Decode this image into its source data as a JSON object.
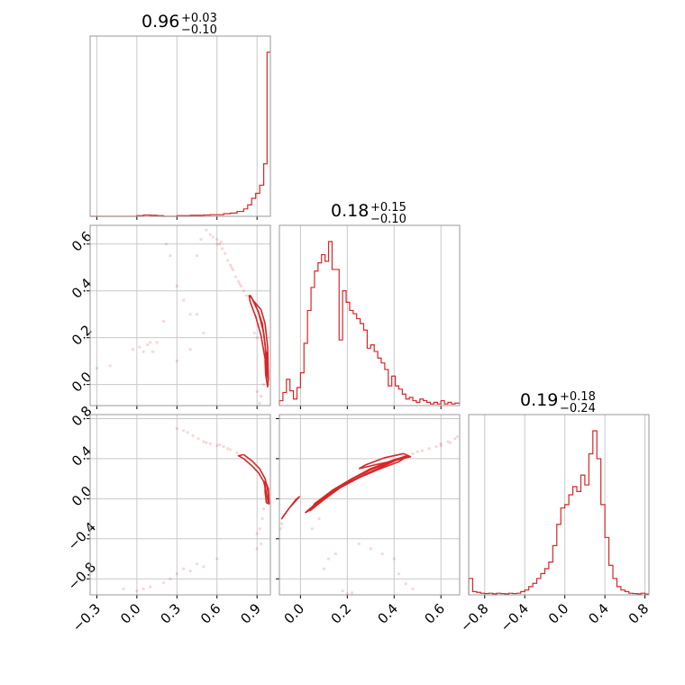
{
  "chart_data": [
    {
      "type": "histogram",
      "title_value": "0.96",
      "title_upper": "+0.03",
      "title_lower": "−0.10",
      "xlim": [
        -0.35,
        1.0
      ],
      "xticks": [
        -0.3,
        0.0,
        0.3,
        0.6,
        0.9
      ],
      "grid": true,
      "color": "#d62728",
      "bins": [
        [
          -0.35,
          0
        ],
        [
          -0.3,
          0
        ],
        [
          -0.25,
          0
        ],
        [
          -0.2,
          0
        ],
        [
          -0.15,
          0
        ],
        [
          -0.1,
          0
        ],
        [
          -0.05,
          0
        ],
        [
          0.0,
          0.004
        ],
        [
          0.05,
          0.008
        ],
        [
          0.1,
          0.006
        ],
        [
          0.15,
          0.004
        ],
        [
          0.2,
          0
        ],
        [
          0.25,
          0
        ],
        [
          0.3,
          0.004
        ],
        [
          0.35,
          0.004
        ],
        [
          0.4,
          0.006
        ],
        [
          0.45,
          0.006
        ],
        [
          0.5,
          0.008
        ],
        [
          0.55,
          0.01
        ],
        [
          0.6,
          0.01
        ],
        [
          0.65,
          0.016
        ],
        [
          0.7,
          0.02
        ],
        [
          0.75,
          0.03
        ],
        [
          0.8,
          0.045
        ],
        [
          0.83,
          0.07
        ],
        [
          0.86,
          0.11
        ],
        [
          0.89,
          0.14
        ],
        [
          0.92,
          0.19
        ],
        [
          0.95,
          0.32
        ],
        [
          0.975,
          1.0
        ]
      ]
    },
    {
      "type": "histogram",
      "title_value": "0.18",
      "title_upper": "+0.15",
      "title_lower": "−0.10",
      "xlim": [
        -0.09,
        0.68
      ],
      "xticks": [
        0.0,
        0.2,
        0.4,
        0.6
      ],
      "grid": true,
      "color": "#d62728",
      "bins": [
        [
          -0.09,
          0.03
        ],
        [
          -0.075,
          0.08
        ],
        [
          -0.06,
          0.16
        ],
        [
          -0.045,
          0.09
        ],
        [
          -0.03,
          0.04
        ],
        [
          -0.015,
          0.11
        ],
        [
          0.0,
          0.2
        ],
        [
          0.015,
          0.38
        ],
        [
          0.03,
          0.58
        ],
        [
          0.045,
          0.72
        ],
        [
          0.06,
          0.82
        ],
        [
          0.075,
          0.87
        ],
        [
          0.09,
          0.92
        ],
        [
          0.105,
          0.88
        ],
        [
          0.12,
          1.0
        ],
        [
          0.135,
          0.83
        ],
        [
          0.15,
          0.83
        ],
        [
          0.165,
          0.4
        ],
        [
          0.18,
          0.7
        ],
        [
          0.195,
          0.63
        ],
        [
          0.21,
          0.58
        ],
        [
          0.225,
          0.56
        ],
        [
          0.24,
          0.53
        ],
        [
          0.255,
          0.5
        ],
        [
          0.27,
          0.46
        ],
        [
          0.285,
          0.35
        ],
        [
          0.3,
          0.37
        ],
        [
          0.315,
          0.33
        ],
        [
          0.33,
          0.29
        ],
        [
          0.345,
          0.26
        ],
        [
          0.36,
          0.22
        ],
        [
          0.375,
          0.12
        ],
        [
          0.39,
          0.18
        ],
        [
          0.405,
          0.12
        ],
        [
          0.42,
          0.1
        ],
        [
          0.435,
          0.07
        ],
        [
          0.45,
          0.04
        ],
        [
          0.465,
          0.05
        ],
        [
          0.48,
          0.03
        ],
        [
          0.495,
          0.02
        ],
        [
          0.51,
          0.04
        ],
        [
          0.525,
          0.03
        ],
        [
          0.54,
          0.02
        ],
        [
          0.555,
          0.01
        ],
        [
          0.57,
          0.02
        ],
        [
          0.585,
          0.01
        ],
        [
          0.6,
          0.03
        ],
        [
          0.615,
          0.01
        ],
        [
          0.63,
          0.02
        ],
        [
          0.645,
          0.01
        ],
        [
          0.66,
          0.015
        ]
      ]
    },
    {
      "type": "histogram",
      "title_value": "0.19",
      "title_upper": "+0.18",
      "title_lower": "−0.24",
      "xlim": [
        -0.96,
        0.84
      ],
      "xticks": [
        -0.8,
        -0.4,
        0.0,
        0.4,
        0.8
      ],
      "grid": true,
      "color": "#d62728",
      "bins": [
        [
          -0.96,
          0.1
        ],
        [
          -0.92,
          0.02
        ],
        [
          -0.88,
          0.015
        ],
        [
          -0.84,
          0.01
        ],
        [
          -0.8,
          0.008
        ],
        [
          -0.76,
          0.01
        ],
        [
          -0.72,
          0.006
        ],
        [
          -0.68,
          0.01
        ],
        [
          -0.64,
          0.008
        ],
        [
          -0.6,
          0.006
        ],
        [
          -0.56,
          0.01
        ],
        [
          -0.52,
          0.008
        ],
        [
          -0.48,
          0.01
        ],
        [
          -0.44,
          0.02
        ],
        [
          -0.4,
          0.03
        ],
        [
          -0.36,
          0.05
        ],
        [
          -0.32,
          0.07
        ],
        [
          -0.28,
          0.1
        ],
        [
          -0.24,
          0.13
        ],
        [
          -0.2,
          0.16
        ],
        [
          -0.16,
          0.2
        ],
        [
          -0.12,
          0.3
        ],
        [
          -0.08,
          0.43
        ],
        [
          -0.04,
          0.53
        ],
        [
          0.0,
          0.55
        ],
        [
          0.04,
          0.61
        ],
        [
          0.08,
          0.66
        ],
        [
          0.12,
          0.63
        ],
        [
          0.16,
          0.73
        ],
        [
          0.2,
          0.67
        ],
        [
          0.24,
          0.86
        ],
        [
          0.28,
          1.0
        ],
        [
          0.32,
          0.83
        ],
        [
          0.36,
          0.55
        ],
        [
          0.4,
          0.35
        ],
        [
          0.44,
          0.18
        ],
        [
          0.48,
          0.1
        ],
        [
          0.52,
          0.05
        ],
        [
          0.56,
          0.03
        ],
        [
          0.6,
          0.02
        ],
        [
          0.64,
          0.01
        ],
        [
          0.68,
          0.008
        ],
        [
          0.72,
          0.006
        ],
        [
          0.76,
          0.01
        ],
        [
          0.8,
          0.005
        ]
      ]
    },
    {
      "type": "scatter",
      "xlim": [
        -0.35,
        1.0
      ],
      "ylim": [
        -0.09,
        0.68
      ],
      "yticks": [
        0.0,
        0.2,
        0.4,
        0.6
      ],
      "grid": true,
      "color": "#d62728",
      "contours": [
        [
          [
            0.93,
            0.32
          ],
          [
            0.96,
            0.26
          ],
          [
            0.98,
            0.16
          ],
          [
            0.985,
            0.02
          ],
          [
            0.975,
            0.04
          ],
          [
            0.96,
            0.17
          ],
          [
            0.94,
            0.26
          ],
          [
            0.91,
            0.31
          ],
          [
            0.88,
            0.35
          ],
          [
            0.85,
            0.38
          ],
          [
            0.87,
            0.36
          ],
          [
            0.93,
            0.32
          ]
        ],
        [
          [
            0.86,
            0.37
          ],
          [
            0.91,
            0.31
          ],
          [
            0.95,
            0.22
          ],
          [
            0.97,
            0.12
          ],
          [
            0.975,
            0.04
          ],
          [
            0.96,
            0.11
          ],
          [
            0.93,
            0.21
          ],
          [
            0.89,
            0.29
          ],
          [
            0.85,
            0.35
          ],
          [
            0.84,
            0.38
          ],
          [
            0.86,
            0.37
          ]
        ],
        [
          [
            0.97,
            0.14
          ],
          [
            0.98,
            0.08
          ],
          [
            0.985,
            0.03
          ],
          [
            0.98,
            -0.01
          ],
          [
            0.965,
            0.04
          ],
          [
            0.96,
            0.1
          ],
          [
            0.97,
            0.14
          ]
        ]
      ],
      "points": [
        [
          0.55,
          0.64
        ],
        [
          0.57,
          0.63
        ],
        [
          0.6,
          0.62
        ],
        [
          0.62,
          0.6
        ],
        [
          0.64,
          0.58
        ],
        [
          0.66,
          0.56
        ],
        [
          0.68,
          0.53
        ],
        [
          0.7,
          0.51
        ],
        [
          0.72,
          0.49
        ],
        [
          0.74,
          0.46
        ],
        [
          0.76,
          0.44
        ],
        [
          0.78,
          0.42
        ],
        [
          0.8,
          0.4
        ],
        [
          0.82,
          0.38
        ],
        [
          0.6,
          0.6
        ],
        [
          0.52,
          0.66
        ],
        [
          0.48,
          0.62
        ],
        [
          0.63,
          0.61
        ],
        [
          0.71,
          0.5
        ],
        [
          0.77,
          0.43
        ],
        [
          0.02,
          0.16
        ],
        [
          0.05,
          0.14
        ],
        [
          0.08,
          0.17
        ],
        [
          0.1,
          0.18
        ],
        [
          -0.03,
          0.15
        ],
        [
          0.12,
          0.14
        ],
        [
          0.15,
          0.18
        ],
        [
          -0.2,
          0.08
        ],
        [
          -0.3,
          0.07
        ],
        [
          0.3,
          0.42
        ],
        [
          0.35,
          0.36
        ],
        [
          0.4,
          0.3
        ],
        [
          0.2,
          0.27
        ],
        [
          0.22,
          0.6
        ],
        [
          0.25,
          0.55
        ],
        [
          0.45,
          0.55
        ],
        [
          0.9,
          -0.03
        ],
        [
          0.93,
          -0.05
        ],
        [
          0.95,
          0.0
        ],
        [
          0.92,
          -0.08
        ],
        [
          0.88,
          0.22
        ],
        [
          0.9,
          0.2
        ],
        [
          0.45,
          0.3
        ],
        [
          0.5,
          0.22
        ],
        [
          0.4,
          0.15
        ],
        [
          0.3,
          0.1
        ]
      ]
    },
    {
      "type": "scatter",
      "xlim": [
        -0.35,
        1.0
      ],
      "ylim": [
        -0.96,
        0.84
      ],
      "yticks": [
        -0.8,
        -0.4,
        0.0,
        0.4,
        0.8
      ],
      "grid": true,
      "color": "#d62728",
      "contours": [
        [
          [
            0.8,
            0.44
          ],
          [
            0.86,
            0.38
          ],
          [
            0.92,
            0.3
          ],
          [
            0.96,
            0.2
          ],
          [
            0.985,
            0.05
          ],
          [
            0.985,
            -0.05
          ],
          [
            0.97,
            0.06
          ],
          [
            0.95,
            0.17
          ],
          [
            0.91,
            0.26
          ],
          [
            0.86,
            0.33
          ],
          [
            0.8,
            0.4
          ],
          [
            0.76,
            0.43
          ],
          [
            0.8,
            0.44
          ]
        ],
        [
          [
            0.96,
            0.18
          ],
          [
            0.985,
            0.1
          ],
          [
            0.99,
            -0.05
          ],
          [
            0.97,
            -0.04
          ],
          [
            0.96,
            0.07
          ],
          [
            0.96,
            0.18
          ]
        ]
      ],
      "points": [
        [
          0.38,
          0.66
        ],
        [
          0.42,
          0.63
        ],
        [
          0.46,
          0.6
        ],
        [
          0.5,
          0.57
        ],
        [
          0.55,
          0.55
        ],
        [
          0.6,
          0.53
        ],
        [
          0.65,
          0.52
        ],
        [
          0.7,
          0.49
        ],
        [
          0.75,
          0.46
        ],
        [
          0.3,
          0.7
        ],
        [
          0.35,
          0.68
        ],
        [
          0.52,
          0.56
        ],
        [
          0.62,
          0.54
        ],
        [
          0.68,
          0.5
        ],
        [
          0.95,
          -0.1
        ],
        [
          0.94,
          -0.2
        ],
        [
          0.92,
          -0.3
        ],
        [
          0.9,
          -0.35
        ],
        [
          -0.1,
          -0.9
        ],
        [
          0.0,
          -0.92
        ],
        [
          0.05,
          -0.9
        ],
        [
          0.1,
          -0.88
        ],
        [
          0.2,
          -0.84
        ],
        [
          0.25,
          -0.8
        ],
        [
          0.3,
          -0.75
        ],
        [
          0.35,
          -0.7
        ],
        [
          0.4,
          -0.72
        ],
        [
          0.45,
          -0.65
        ],
        [
          0.5,
          -0.68
        ],
        [
          0.6,
          -0.6
        ],
        [
          0.9,
          -0.5
        ],
        [
          0.93,
          -0.45
        ]
      ]
    },
    {
      "type": "scatter",
      "xlim": [
        -0.09,
        0.68
      ],
      "ylim": [
        -0.96,
        0.84
      ],
      "grid": true,
      "color": "#d62728",
      "contours": [
        [
          [
            0.02,
            -0.14
          ],
          [
            0.08,
            -0.02
          ],
          [
            0.15,
            0.1
          ],
          [
            0.22,
            0.2
          ],
          [
            0.3,
            0.29
          ],
          [
            0.38,
            0.36
          ],
          [
            0.46,
            0.43
          ],
          [
            0.44,
            0.42
          ],
          [
            0.36,
            0.33
          ],
          [
            0.28,
            0.25
          ],
          [
            0.2,
            0.16
          ],
          [
            0.12,
            0.04
          ],
          [
            0.05,
            -0.1
          ],
          [
            0.02,
            -0.14
          ]
        ],
        [
          [
            0.04,
            -0.12
          ],
          [
            0.1,
            -0.01
          ],
          [
            0.17,
            0.11
          ],
          [
            0.25,
            0.21
          ],
          [
            0.33,
            0.29
          ],
          [
            0.42,
            0.37
          ],
          [
            0.46,
            0.43
          ],
          [
            0.4,
            0.39
          ],
          [
            0.3,
            0.3
          ],
          [
            0.22,
            0.2
          ],
          [
            0.14,
            0.09
          ],
          [
            0.06,
            -0.05
          ],
          [
            0.04,
            -0.12
          ]
        ],
        [
          [
            0.25,
            0.3
          ],
          [
            0.32,
            0.34
          ],
          [
            0.4,
            0.38
          ],
          [
            0.47,
            0.42
          ],
          [
            0.44,
            0.45
          ],
          [
            0.36,
            0.41
          ],
          [
            0.28,
            0.34
          ],
          [
            0.25,
            0.3
          ]
        ],
        [
          [
            -0.075,
            -0.18
          ],
          [
            -0.05,
            -0.1
          ],
          [
            -0.02,
            -0.02
          ],
          [
            -0.005,
            0.02
          ],
          [
            -0.02,
            -0.01
          ],
          [
            -0.05,
            -0.1
          ],
          [
            -0.08,
            -0.2
          ],
          [
            -0.075,
            -0.18
          ]
        ]
      ],
      "points": [
        [
          0.48,
          0.45
        ],
        [
          0.5,
          0.47
        ],
        [
          0.52,
          0.48
        ],
        [
          0.55,
          0.5
        ],
        [
          0.58,
          0.52
        ],
        [
          0.6,
          0.55
        ],
        [
          0.63,
          0.57
        ],
        [
          0.66,
          0.6
        ],
        [
          0.67,
          0.62
        ],
        [
          -0.08,
          -0.25
        ],
        [
          -0.085,
          -0.3
        ],
        [
          0.2,
          -0.95
        ],
        [
          0.18,
          -0.92
        ],
        [
          0.22,
          -0.94
        ],
        [
          0.1,
          -0.7
        ],
        [
          0.12,
          -0.6
        ],
        [
          0.15,
          -0.55
        ],
        [
          0.25,
          -0.45
        ],
        [
          0.3,
          -0.5
        ],
        [
          0.35,
          -0.55
        ],
        [
          0.4,
          -0.6
        ],
        [
          0.42,
          -0.75
        ],
        [
          0.45,
          -0.85
        ],
        [
          0.48,
          -0.9
        ],
        [
          0.05,
          -0.3
        ],
        [
          0.08,
          -0.2
        ],
        [
          0.6,
          0.53
        ],
        [
          0.64,
          0.56
        ]
      ]
    }
  ]
}
